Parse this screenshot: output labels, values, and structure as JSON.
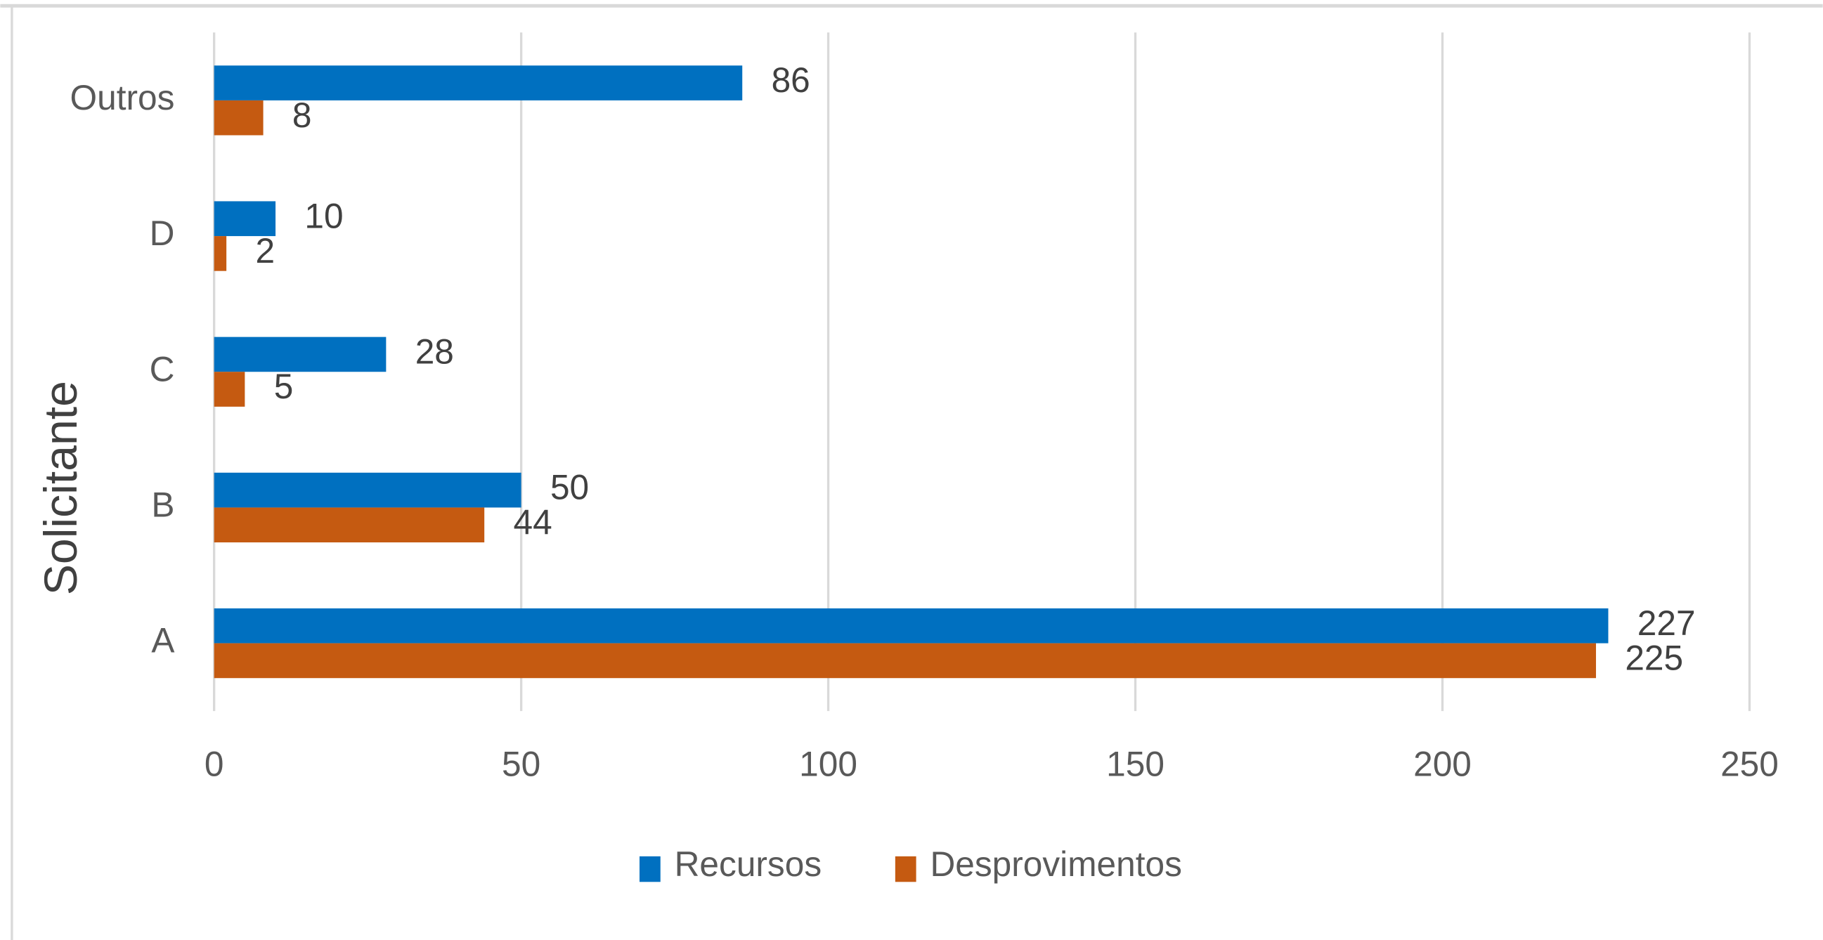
{
  "chart_data": {
    "type": "bar",
    "orientation": "horizontal",
    "categories": [
      "A",
      "B",
      "C",
      "D",
      "Outros"
    ],
    "series": [
      {
        "name": "Recursos",
        "color": "#0070c0",
        "values": [
          227,
          50,
          28,
          10,
          86
        ]
      },
      {
        "name": "Desprovimentos",
        "color": "#c55a11",
        "values": [
          225,
          44,
          5,
          2,
          8
        ]
      }
    ],
    "ylabel": "Solicitante",
    "xlim": [
      0,
      250
    ],
    "xticks": [
      0,
      50,
      100,
      150,
      200,
      250
    ],
    "grid": true,
    "legend": "bottom"
  }
}
